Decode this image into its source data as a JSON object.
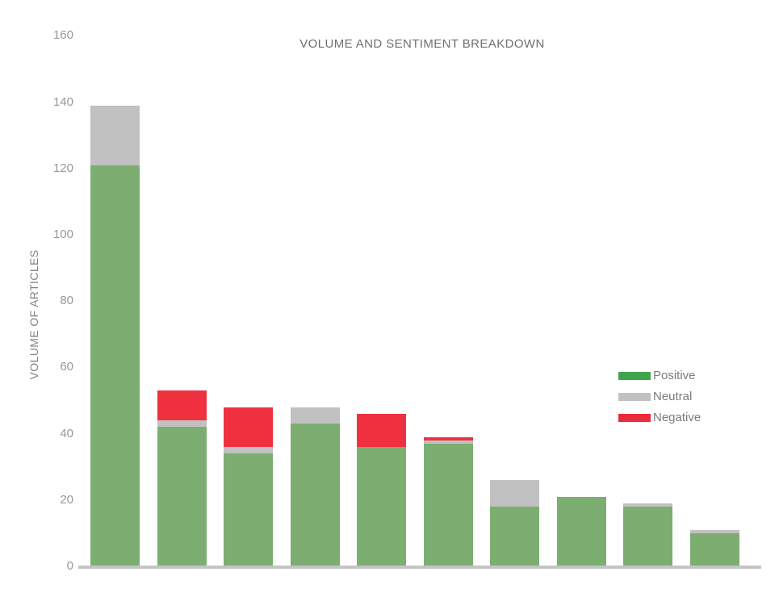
{
  "chart_data": {
    "type": "bar",
    "stacked": true,
    "title": "VOLUME AND SENTIMENT BREAKDOWN",
    "ylabel": "VOLUME OF ARTICLES",
    "xlabel": "",
    "bar_count": 10,
    "x_tick_labels_visible": false,
    "ylim": [
      0,
      160
    ],
    "y_ticks": [
      0,
      20,
      40,
      60,
      80,
      100,
      120,
      140,
      160
    ],
    "grid": false,
    "legend_position": "right",
    "series": [
      {
        "name": "Positive",
        "bar_color": "#7CAE72",
        "legend_color": "#40A44C",
        "values": [
          121,
          42,
          34,
          43,
          36,
          37,
          18,
          21,
          18,
          10
        ]
      },
      {
        "name": "Neutral",
        "bar_color": "#C1C1C1",
        "legend_color": "#C1C1C1",
        "values": [
          18,
          2,
          2,
          5,
          0,
          1,
          8,
          0,
          1,
          1
        ]
      },
      {
        "name": "Negative",
        "bar_color": "#EF313F",
        "legend_color": "#EA2B39",
        "values": [
          0,
          9,
          12,
          0,
          10,
          1,
          0,
          0,
          0,
          0
        ]
      }
    ],
    "totals": [
      139,
      53,
      48,
      48,
      46,
      39,
      26,
      21,
      19,
      11
    ]
  },
  "colors": {
    "background": "#FFFFFF",
    "axis_line": "#C4C4C4",
    "title_text": "#6F6F6F",
    "tick_text": "#979797",
    "axis_label_text": "#828282",
    "legend_text": "#7B7B7B"
  }
}
